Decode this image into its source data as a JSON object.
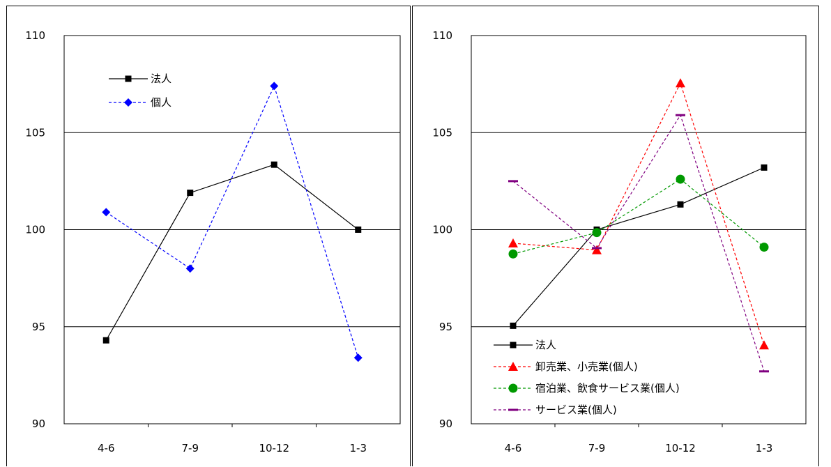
{
  "chart_data": [
    {
      "type": "line",
      "categories": [
        "4-6",
        "7-9",
        "10-12",
        "1-3"
      ],
      "ylim": [
        90,
        110
      ],
      "yticks": [
        90,
        95,
        100,
        105,
        110
      ],
      "grid": true,
      "legend_position": "top-left",
      "series": [
        {
          "name": "法人",
          "values": [
            94.3,
            101.9,
            103.35,
            100.0
          ],
          "color": "#000000",
          "style": "solid",
          "marker": "square"
        },
        {
          "name": "個人",
          "values": [
            100.9,
            98.0,
            107.4,
            93.4
          ],
          "color": "#0000ff",
          "style": "dashed",
          "marker": "diamond"
        }
      ]
    },
    {
      "type": "line",
      "categories": [
        "4-6",
        "7-9",
        "10-12",
        "1-3"
      ],
      "ylim": [
        90,
        110
      ],
      "yticks": [
        90,
        95,
        100,
        105,
        110
      ],
      "grid": true,
      "legend_position": "bottom-left",
      "series": [
        {
          "name": "法人",
          "values": [
            95.05,
            100.0,
            101.3,
            103.2
          ],
          "color": "#000000",
          "style": "solid",
          "marker": "square"
        },
        {
          "name": "卸売業、小売業(個人)",
          "values": [
            99.3,
            98.95,
            107.55,
            94.05
          ],
          "color": "#ff0000",
          "style": "dashed",
          "marker": "triangle"
        },
        {
          "name": "宿泊業、飲食サービス業(個人)",
          "values": [
            98.75,
            99.85,
            102.6,
            99.1
          ],
          "color": "#009900",
          "style": "dashed",
          "marker": "circle"
        },
        {
          "name": "サービス業(個人)",
          "values": [
            102.5,
            99.05,
            105.9,
            92.7
          ],
          "color": "#800080",
          "style": "dashed",
          "marker": "dash"
        }
      ]
    }
  ]
}
